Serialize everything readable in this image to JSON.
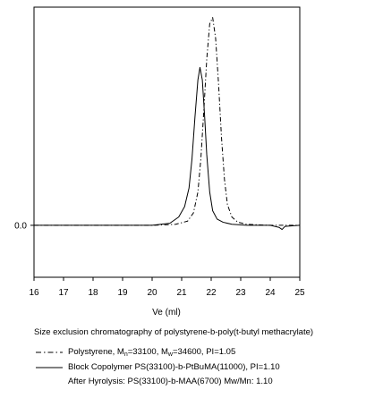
{
  "chart_data": {
    "type": "line",
    "title": "",
    "caption": "Size exclusion chromatography of  polystyrene-b-poly(t-butyl methacrylate)",
    "xlabel": "Ve (ml)",
    "ylabel": "",
    "xlim": [
      16,
      25
    ],
    "xticks": [
      "16",
      "17",
      "18",
      "19",
      "20",
      "21",
      "22",
      "23",
      "24",
      "25"
    ],
    "yticks": [
      {
        "value": 0.0,
        "label": "0.0"
      }
    ],
    "ylim": [
      -0.25,
      1.05
    ],
    "grid": false,
    "legend_position": "bottom",
    "series": [
      {
        "name": "Polystyrene",
        "style": "dash-dot",
        "x": [
          16.0,
          18.0,
          20.0,
          20.8,
          21.2,
          21.4,
          21.55,
          21.65,
          21.75,
          21.85,
          21.95,
          22.05,
          22.15,
          22.25,
          22.35,
          22.45,
          22.55,
          22.7,
          22.9,
          23.2,
          24.0,
          25.0
        ],
        "y": [
          0.0,
          0.0,
          0.0,
          0.005,
          0.02,
          0.06,
          0.16,
          0.32,
          0.55,
          0.8,
          0.97,
          1.0,
          0.9,
          0.68,
          0.42,
          0.22,
          0.1,
          0.04,
          0.015,
          0.005,
          0.0,
          0.0
        ]
      },
      {
        "name": "Block Copolymer PS(33100)-b-PtBuMA(11000),  PI=1.10",
        "style": "solid",
        "x": [
          16.0,
          18.0,
          20.0,
          20.6,
          20.9,
          21.1,
          21.25,
          21.35,
          21.45,
          21.55,
          21.62,
          21.7,
          21.78,
          21.85,
          21.95,
          22.05,
          22.2,
          22.4,
          22.7,
          23.2,
          24.0,
          24.3,
          24.4,
          24.5,
          25.0
        ],
        "y": [
          0.0,
          0.0,
          0.0,
          0.01,
          0.04,
          0.09,
          0.18,
          0.32,
          0.52,
          0.7,
          0.76,
          0.7,
          0.52,
          0.34,
          0.16,
          0.07,
          0.03,
          0.015,
          0.005,
          0.0,
          0.0,
          -0.01,
          -0.02,
          -0.005,
          0.0
        ]
      }
    ],
    "legend": {
      "ps_label": "Polystyrene, M",
      "ps_mn_sub": "n",
      "ps_mn_value": "=33100, M",
      "ps_mw_sub": "w",
      "ps_mw_value": "=34600, PI=1.05",
      "copolymer_label": "Block Copolymer PS(33100)-b-PtBuMA(11000),  PI=1.10",
      "hydrolysis_note": "After Hyrolysis: PS(33100)-b-MAA(6700) Mw/Mn: 1.10"
    }
  }
}
